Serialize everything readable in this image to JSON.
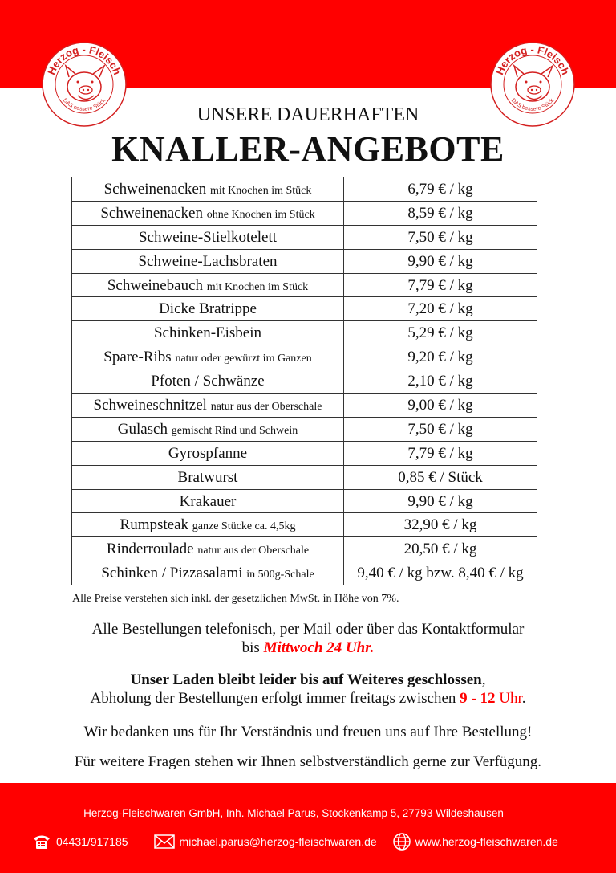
{
  "colors": {
    "brand_red": "#ff0000"
  },
  "logo": {
    "text_top": "Herzog - Fleisch",
    "text_bottom": "DAS bessere Stück"
  },
  "header": {
    "subtitle": "UNSERE DAUERHAFTEN",
    "title": "KNALLER-ANGEBOTE"
  },
  "products": [
    {
      "name": "Schweinenacken",
      "detail": "mit Knochen im Stück",
      "price": "6,79 € / kg"
    },
    {
      "name": "Schweinenacken",
      "detail": "ohne Knochen im Stück",
      "price": "8,59 € / kg"
    },
    {
      "name": "Schweine-Stielkotelett",
      "detail": "",
      "price": "7,50 € / kg"
    },
    {
      "name": "Schweine-Lachsbraten",
      "detail": "",
      "price": "9,90 € / kg"
    },
    {
      "name": "Schweinebauch",
      "detail": "mit Knochen im Stück",
      "price": "7,79 € / kg"
    },
    {
      "name": "Dicke Bratrippe",
      "detail": "",
      "price": "7,20 € / kg"
    },
    {
      "name": "Schinken-Eisbein",
      "detail": "",
      "price": "5,29 € / kg"
    },
    {
      "name": "Spare-Ribs",
      "detail": "natur oder gewürzt im Ganzen",
      "price": "9,20 € / kg"
    },
    {
      "name": "Pfoten / Schwänze",
      "detail": "",
      "price": "2,10 € / kg"
    },
    {
      "name": "Schweineschnitzel",
      "detail": "natur aus der Oberschale",
      "price": "9,00 € / kg"
    },
    {
      "name": "Gulasch",
      "detail": "gemischt Rind und Schwein",
      "price": "7,50 € / kg"
    },
    {
      "name": "Gyrospfanne",
      "detail": "",
      "price": "7,79 € / kg"
    },
    {
      "name": "Bratwurst",
      "detail": "",
      "price": "0,85 € / Stück"
    },
    {
      "name": "Krakauer",
      "detail": "",
      "price": "9,90 € / kg"
    },
    {
      "name": "Rumpsteak",
      "detail": "ganze Stücke ca. 4,5kg",
      "price": "32,90 € / kg"
    },
    {
      "name": "Rinderroulade",
      "detail": "natur aus der Oberschale",
      "price": "20,50 € / kg"
    },
    {
      "name": "Schinken / Pizzasalami",
      "detail": "in 500g-Schale",
      "price": "9,40 € / kg bzw. 8,40 € / kg"
    }
  ],
  "notes": {
    "vat": "Alle Preise verstehen sich inkl. der gesetzlichen MwSt. in Höhe von 7%.",
    "order_line1": "Alle Bestellungen telefonisch, per Mail oder über das Kontaktformular",
    "order_bis": "bis ",
    "order_deadline": "Mittwoch 24 Uhr.",
    "closed": "Unser Laden bleibt leider bis auf Weiteres geschlossen",
    "closed_comma": ",",
    "pickup": "Abholung der Bestellungen erfolgt immer freitags zwischen ",
    "pickup_time": "9 - 12",
    "pickup_uhr": "Uhr",
    "pickup_end": ".",
    "thanks": "Wir bedanken uns für Ihr Verständnis und freuen uns auf Ihre Bestellung!",
    "questions": "Für weitere Fragen stehen wir Ihnen selbstverständlich gerne zur Verfügung."
  },
  "footer": {
    "address": "Herzog-Fleischwaren GmbH, Inh. Michael Parus, Stockenkamp 5, 27793 Wildeshausen",
    "phone": "04431/917185",
    "email": "michael.parus@herzog-fleischwaren.de",
    "website": "www.herzog-fleischwaren.de"
  }
}
